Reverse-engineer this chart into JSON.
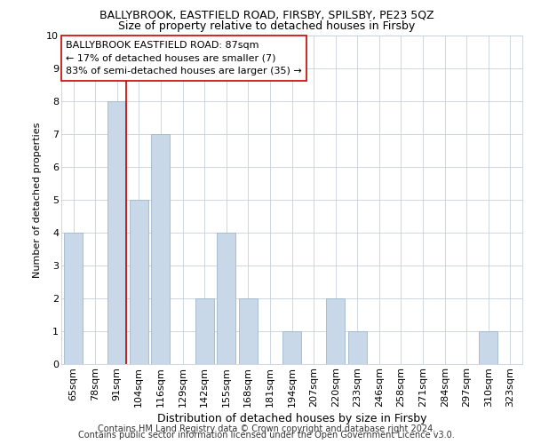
{
  "title": "BALLYBROOK, EASTFIELD ROAD, FIRSBY, SPILSBY, PE23 5QZ",
  "subtitle": "Size of property relative to detached houses in Firsby",
  "xlabel": "Distribution of detached houses by size in Firsby",
  "ylabel": "Number of detached properties",
  "categories": [
    "65sqm",
    "78sqm",
    "91sqm",
    "104sqm",
    "116sqm",
    "129sqm",
    "142sqm",
    "155sqm",
    "168sqm",
    "181sqm",
    "194sqm",
    "207sqm",
    "220sqm",
    "233sqm",
    "246sqm",
    "258sqm",
    "271sqm",
    "284sqm",
    "297sqm",
    "310sqm",
    "323sqm"
  ],
  "values": [
    4,
    0,
    8,
    5,
    7,
    0,
    2,
    4,
    2,
    0,
    1,
    0,
    2,
    1,
    0,
    0,
    0,
    0,
    0,
    1,
    0
  ],
  "bar_color": "#c8d8e8",
  "bar_edge_color": "#a0b8cc",
  "highlight_bar_index": 2,
  "highlight_line_color": "#cc0000",
  "ylim": [
    0,
    10
  ],
  "yticks": [
    0,
    1,
    2,
    3,
    4,
    5,
    6,
    7,
    8,
    9,
    10
  ],
  "annotation_title": "BALLYBROOK EASTFIELD ROAD: 87sqm",
  "annotation_line1": "← 17% of detached houses are smaller (7)",
  "annotation_line2": "83% of semi-detached houses are larger (35) →",
  "footer1": "Contains HM Land Registry data © Crown copyright and database right 2024.",
  "footer2": "Contains public sector information licensed under the Open Government Licence v3.0.",
  "background_color": "#ffffff",
  "grid_color": "#c8d0dc",
  "title_fontsize": 9,
  "subtitle_fontsize": 9,
  "xlabel_fontsize": 9,
  "ylabel_fontsize": 8,
  "tick_fontsize": 8,
  "annotation_fontsize": 8,
  "footer_fontsize": 7
}
